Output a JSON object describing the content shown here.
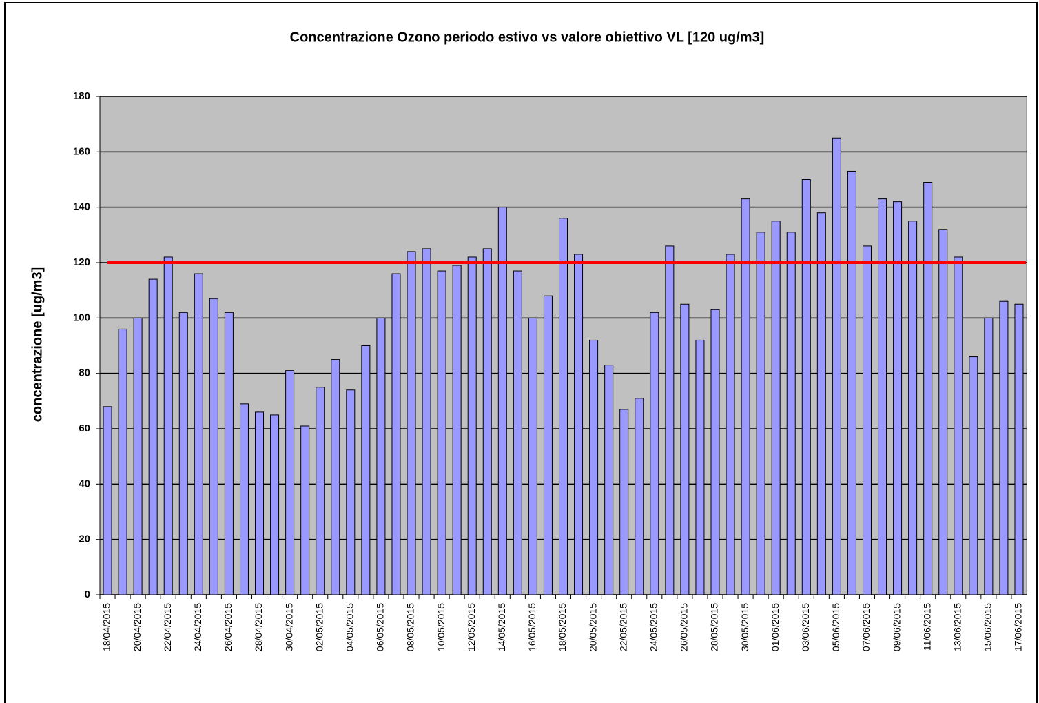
{
  "chart_data": {
    "type": "bar",
    "title": "Concentrazione Ozono periodo estivo vs valore obiettivo VL [120 ug/m3]",
    "y_label": "concentrazione [ug/m3]",
    "categories": [
      "18/04/2015",
      null,
      "20/04/2015",
      null,
      "22/04/2015",
      null,
      "24/04/2015",
      null,
      "26/04/2015",
      null,
      "28/04/2015",
      null,
      "30/04/2015",
      null,
      "02/05/2015",
      null,
      "04/05/2015",
      null,
      "06/05/2015",
      null,
      "08/05/2015",
      null,
      "10/05/2015",
      null,
      "12/05/2015",
      null,
      "14/05/2015",
      null,
      "16/05/2015",
      null,
      "18/05/2015",
      null,
      "20/05/2015",
      null,
      "22/05/2015",
      null,
      "24/05/2015",
      null,
      "26/05/2015",
      null,
      "28/05/2015",
      null,
      "30/05/2015",
      null,
      "01/06/2015",
      null,
      "03/06/2015",
      null,
      "05/06/2015",
      null,
      "07/06/2015",
      null,
      "09/06/2015",
      null,
      "11/06/2015",
      null,
      "13/06/2015",
      null,
      "15/06/2015",
      null,
      "17/06/2015"
    ],
    "values": [
      68,
      96,
      100,
      114,
      122,
      102,
      116,
      107,
      102,
      69,
      66,
      65,
      81,
      61,
      75,
      85,
      74,
      90,
      100,
      116,
      124,
      125,
      117,
      119,
      122,
      125,
      140,
      117,
      100,
      108,
      136,
      123,
      92,
      83,
      67,
      71,
      102,
      126,
      105,
      92,
      103,
      123,
      143,
      131,
      135,
      131,
      150,
      138,
      165,
      153,
      126,
      143,
      142,
      135,
      149,
      132,
      122,
      86,
      100,
      106,
      105
    ],
    "color": "#9999ff",
    "reference_line": {
      "value": 120,
      "color": "#ff0000"
    },
    "ylim": [
      0,
      180
    ],
    "yticks": [
      0,
      20,
      40,
      60,
      80,
      100,
      120,
      140,
      160,
      180
    ],
    "grid": true
  }
}
